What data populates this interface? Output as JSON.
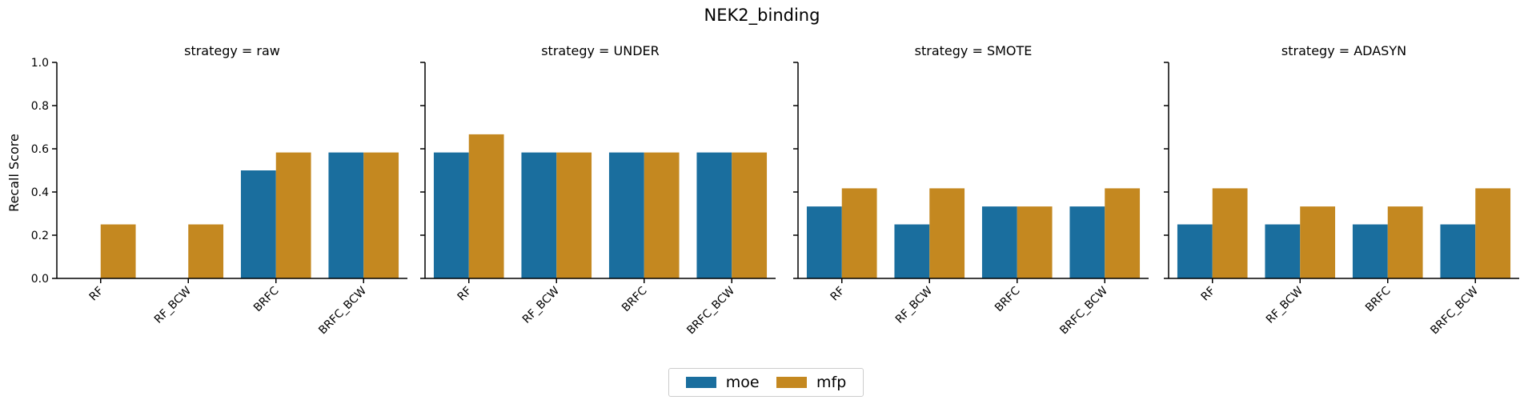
{
  "chart_data": {
    "type": "bar",
    "title": "NEK2_binding",
    "ylabel": "Recall Score",
    "xlabel": "",
    "ylim": [
      0,
      1.0
    ],
    "yticks": [
      "0.0",
      "0.2",
      "0.4",
      "0.6",
      "0.8",
      "1.0"
    ],
    "categories": [
      "RF",
      "RF_BCW",
      "BRFC",
      "BRFC_BCW"
    ],
    "legend": {
      "placement": "bottom-center",
      "entries": [
        "moe",
        "mfp"
      ]
    },
    "colors": {
      "moe": "#1a6e9e",
      "mfp": "#c48820"
    },
    "grid": false,
    "panels": [
      {
        "label": "strategy = raw",
        "series": [
          {
            "name": "moe",
            "values": [
              0,
              0,
              0.5,
              0.583
            ]
          },
          {
            "name": "mfp",
            "values": [
              0.25,
              0.25,
              0.583,
              0.583
            ]
          }
        ]
      },
      {
        "label": "strategy = UNDER",
        "series": [
          {
            "name": "moe",
            "values": [
              0.583,
              0.583,
              0.583,
              0.583
            ]
          },
          {
            "name": "mfp",
            "values": [
              0.667,
              0.583,
              0.583,
              0.583
            ]
          }
        ]
      },
      {
        "label": "strategy = SMOTE",
        "series": [
          {
            "name": "moe",
            "values": [
              0.333,
              0.25,
              0.333,
              0.333
            ]
          },
          {
            "name": "mfp",
            "values": [
              0.417,
              0.417,
              0.333,
              0.417
            ]
          }
        ]
      },
      {
        "label": "strategy = ADASYN",
        "series": [
          {
            "name": "moe",
            "values": [
              0.25,
              0.25,
              0.25,
              0.25
            ]
          },
          {
            "name": "mfp",
            "values": [
              0.417,
              0.333,
              0.333,
              0.417
            ]
          }
        ]
      }
    ]
  }
}
